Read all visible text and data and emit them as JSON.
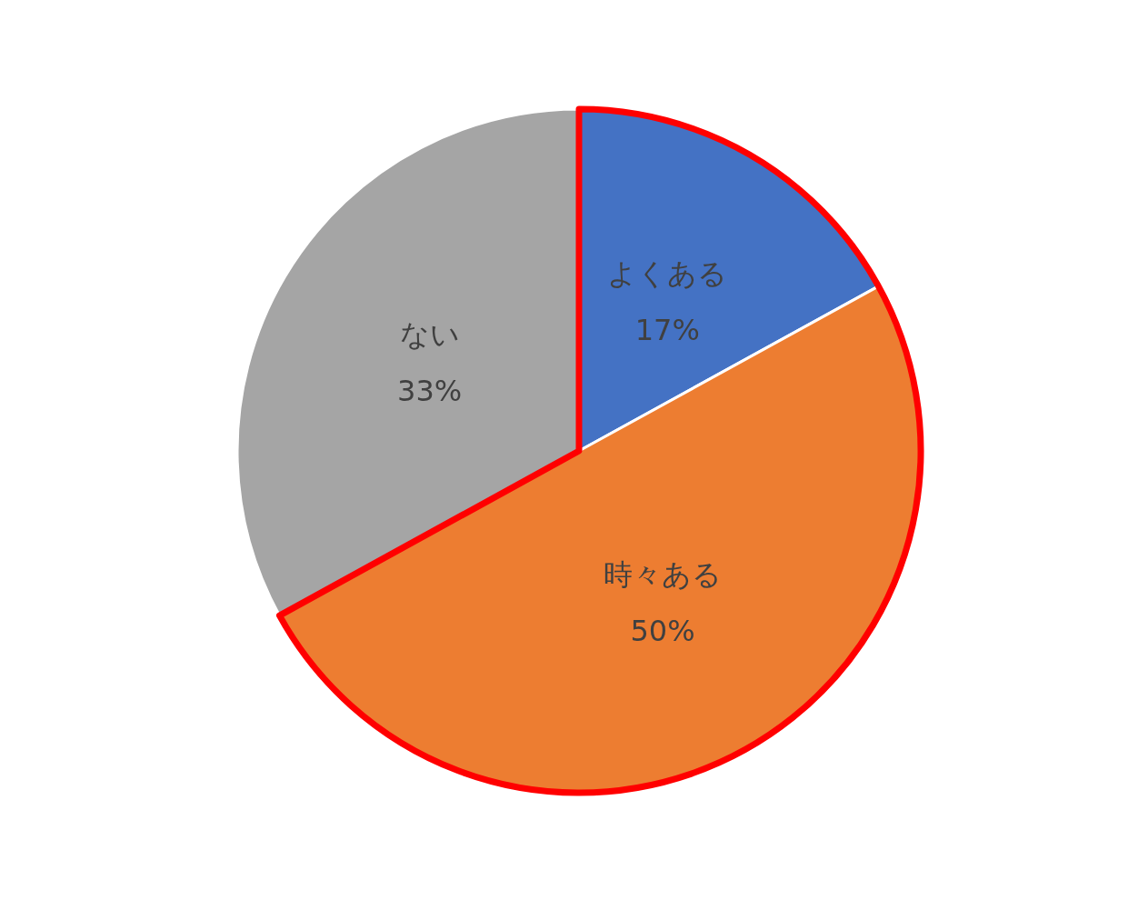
{
  "chart_data": {
    "type": "pie",
    "categories": [
      "よくある",
      "時々ある",
      "ない"
    ],
    "values": [
      17,
      50,
      33
    ],
    "colors": [
      "#4472c4",
      "#ed7d31",
      "#a5a5a5"
    ],
    "value_labels": [
      "17%",
      "50%",
      "33%"
    ],
    "legend": false
  }
}
